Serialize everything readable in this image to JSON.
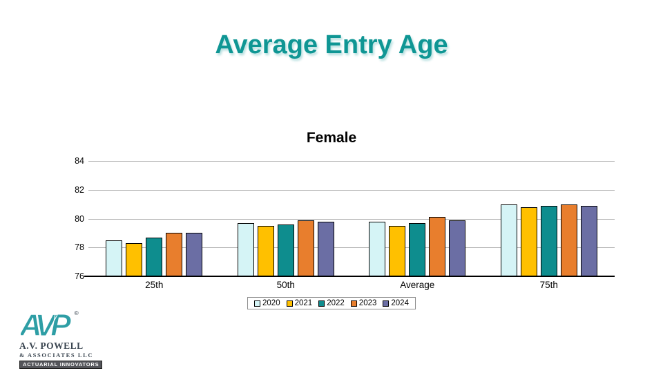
{
  "slide": {
    "title": "Average Entry Age",
    "title_color": "#0F9694"
  },
  "chart_data": {
    "type": "bar",
    "title": "Female",
    "categories": [
      "25th",
      "50th",
      "Average",
      "75th"
    ],
    "series": [
      {
        "name": "2020",
        "color": "#D5F4F6",
        "values": [
          78.5,
          79.7,
          79.8,
          81.0
        ]
      },
      {
        "name": "2021",
        "color": "#FFC000",
        "values": [
          78.3,
          79.5,
          79.5,
          80.8
        ]
      },
      {
        "name": "2022",
        "color": "#0E8D8E",
        "values": [
          78.7,
          79.6,
          79.7,
          80.9
        ]
      },
      {
        "name": "2023",
        "color": "#E87E2D",
        "values": [
          79.0,
          79.9,
          80.1,
          81.0
        ]
      },
      {
        "name": "2024",
        "color": "#6B6EA4",
        "values": [
          79.0,
          79.8,
          79.9,
          80.9
        ]
      }
    ],
    "ylim": [
      76,
      84
    ],
    "yticks": [
      76,
      78,
      80,
      82,
      84
    ],
    "grid": true,
    "gridline_color": "#B3B3B3",
    "axis_color": "#000000",
    "bar_border_color": "#000000",
    "legend_position": "bottom",
    "xlabel": "",
    "ylabel": ""
  },
  "logo": {
    "monogram": "AVP",
    "registered_mark": "®",
    "line1": "A.V. POWELL",
    "line2": "& ASSOCIATES LLC",
    "badge": "ACTUARIAL INNOVATORS",
    "teal": "#2E9EA5"
  }
}
